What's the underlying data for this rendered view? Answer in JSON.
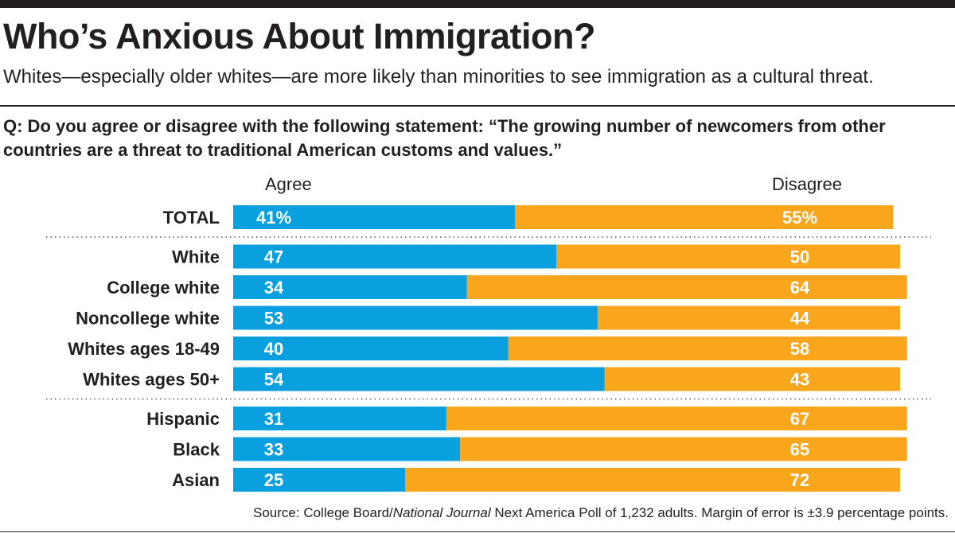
{
  "header": {
    "title": "Who’s Anxious About Immigration?",
    "subtitle": "Whites—especially older whites—are more likely than minorities to see immigration as a cultural threat."
  },
  "question": "Q: Do you agree or disagree with the following statement:  “The growing number of newcomers from other countries are a threat to traditional American customs and values.”",
  "source": {
    "prefix": "Source: College Board/",
    "italic": "National Journal",
    "suffix": " Next America Poll of 1,232 adults. Margin of error is ±3.9 percentage points."
  },
  "colors": {
    "agree": "#0a9fdf",
    "disagree": "#f9a61d",
    "text": "#231f20"
  },
  "chart_data": {
    "type": "bar",
    "orientation": "horizontal-stacked",
    "column_headers": [
      "Agree",
      "Disagree"
    ],
    "series": [
      {
        "name": "Agree",
        "values": [
          41,
          47,
          34,
          53,
          40,
          54,
          31,
          33,
          25
        ]
      },
      {
        "name": "Disagree",
        "values": [
          55,
          50,
          64,
          44,
          58,
          43,
          67,
          65,
          72
        ]
      }
    ],
    "rows": [
      {
        "category": "TOTAL",
        "agree": 41,
        "disagree": 55,
        "agree_label": "41%",
        "disagree_label": "55%",
        "group": 0
      },
      {
        "category": "White",
        "agree": 47,
        "disagree": 50,
        "agree_label": "47",
        "disagree_label": "50",
        "group": 1
      },
      {
        "category": "College white",
        "agree": 34,
        "disagree": 64,
        "agree_label": "34",
        "disagree_label": "64",
        "group": 1
      },
      {
        "category": "Noncollege white",
        "agree": 53,
        "disagree": 44,
        "agree_label": "53",
        "disagree_label": "44",
        "group": 1
      },
      {
        "category": "Whites ages 18-49",
        "agree": 40,
        "disagree": 58,
        "agree_label": "40",
        "disagree_label": "58",
        "group": 1
      },
      {
        "category": "Whites ages 50+",
        "agree": 54,
        "disagree": 43,
        "agree_label": "54",
        "disagree_label": "43",
        "group": 1
      },
      {
        "category": "Hispanic",
        "agree": 31,
        "disagree": 67,
        "agree_label": "31",
        "disagree_label": "67",
        "group": 2
      },
      {
        "category": "Black",
        "agree": 33,
        "disagree": 65,
        "agree_label": "33",
        "disagree_label": "65",
        "group": 2
      },
      {
        "category": "Asian",
        "agree": 25,
        "disagree": 72,
        "agree_label": "25",
        "disagree_label": "72",
        "group": 2
      }
    ],
    "unit": "percent",
    "xlim": [
      0,
      100
    ],
    "grid": false,
    "legend": "column headers above bars"
  }
}
